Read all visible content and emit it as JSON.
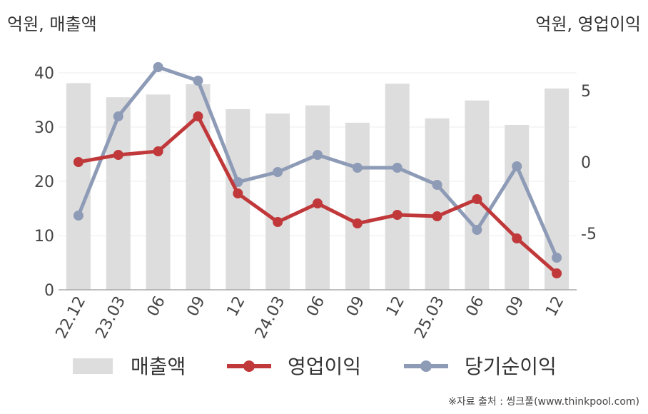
{
  "units": {
    "left": "억원, 매출액",
    "right": "억원, 영업이익"
  },
  "source": "※자료 출처 : 씽크풀(www.thinkpool.com)",
  "colors": {
    "revenue": "#dddddd",
    "operating": "#c0383a",
    "net": "#8e9bb7"
  },
  "chart_data": {
    "type": "bar",
    "categories": [
      "22.12",
      "23.03",
      "06",
      "09",
      "12",
      "24.03",
      "06",
      "09",
      "12",
      "25.03",
      "06",
      "09",
      "12"
    ],
    "series": [
      {
        "name": "매출액",
        "type": "bar",
        "axis": "left",
        "values": [
          38.1,
          35.5,
          36.0,
          37.9,
          33.3,
          32.5,
          34.0,
          30.8,
          38.0,
          31.6,
          34.9,
          30.4,
          37.1
        ]
      },
      {
        "name": "영업이익",
        "type": "line",
        "axis": "right",
        "values": [
          0.0,
          0.5,
          0.75,
          3.2,
          -2.2,
          -4.2,
          -2.9,
          -4.3,
          -3.7,
          -3.8,
          -2.6,
          -5.35,
          -7.8
        ]
      },
      {
        "name": "당기순이익",
        "type": "line",
        "axis": "right",
        "values": [
          -3.75,
          3.2,
          6.65,
          5.7,
          -1.4,
          -0.7,
          0.5,
          -0.4,
          -0.4,
          -1.6,
          -4.75,
          -0.3,
          -6.7
        ]
      }
    ],
    "left_axis": {
      "ticks": [
        "0",
        "10",
        "20",
        "30",
        "40"
      ],
      "min": 0,
      "max": 40
    },
    "right_axis": {
      "ticks": [
        "5",
        "0",
        "-5"
      ],
      "min": -9,
      "max": 10
    },
    "grid": true,
    "legend": {
      "position": "bottom",
      "items": [
        "매출액",
        "영업이익",
        "당기순이익"
      ]
    }
  }
}
